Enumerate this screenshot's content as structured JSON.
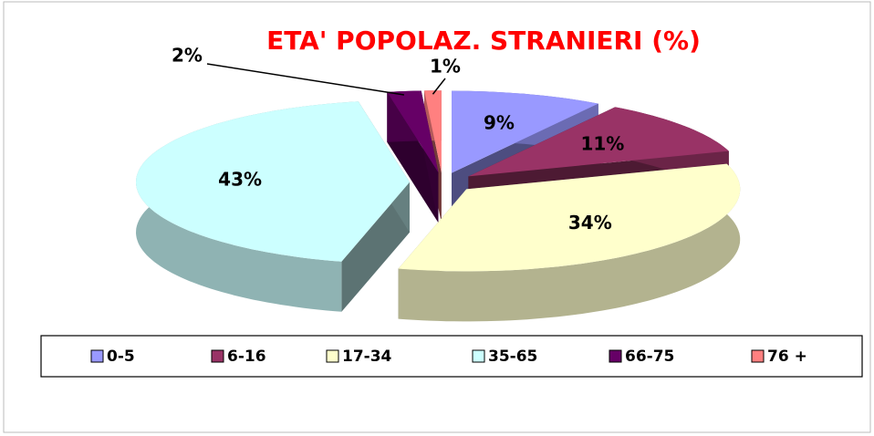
{
  "chart_data": {
    "type": "pie3d",
    "title": "ETA' POPOLAZ. STRANIERI (%)",
    "categories": [
      "0-5",
      "6-16",
      "17-34",
      "35-65",
      "66-75",
      "76 +"
    ],
    "values": [
      9,
      11,
      34,
      43,
      2,
      1
    ],
    "value_labels": [
      "9%",
      "11%",
      "34%",
      "43%",
      "2%",
      "1%"
    ],
    "colors": [
      "#9999ff",
      "#993366",
      "#ffffcc",
      "#ccffff",
      "#660066",
      "#ff8080"
    ],
    "legend": "bottom"
  }
}
